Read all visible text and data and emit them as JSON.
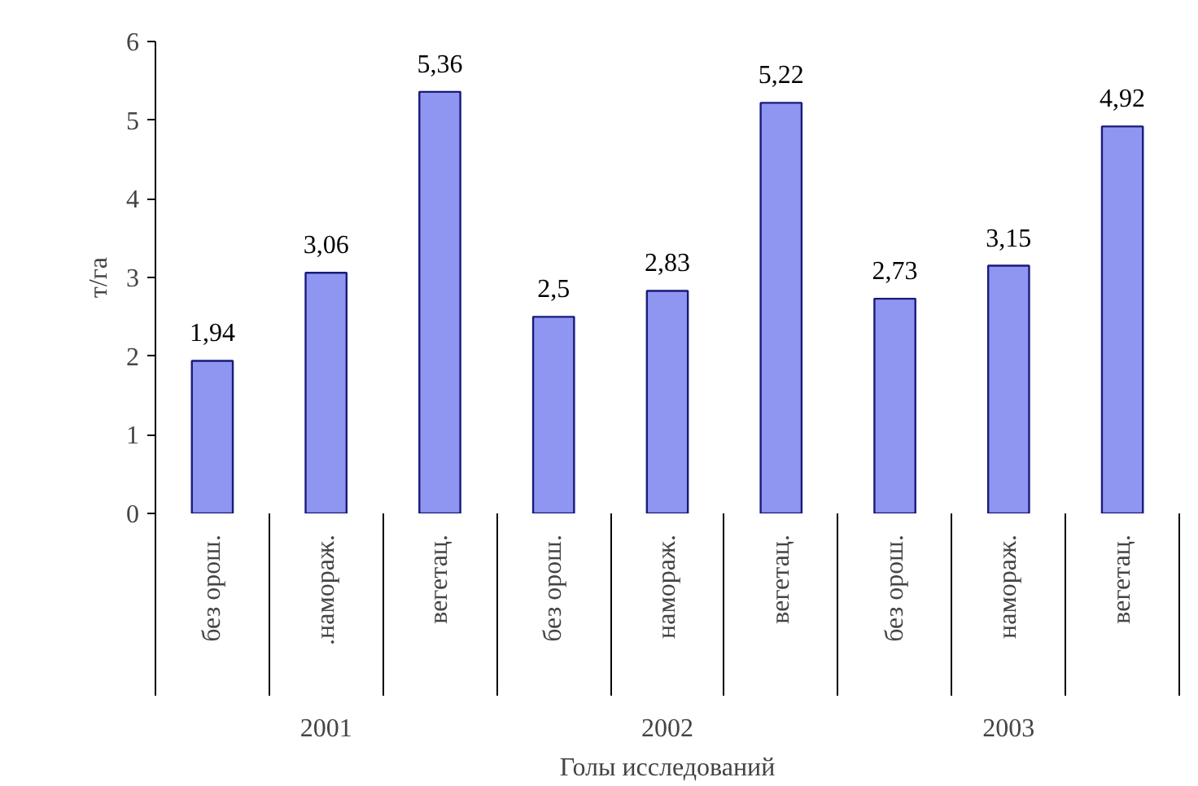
{
  "chart_data": {
    "type": "bar",
    "xlabel": "Голы исследований",
    "ylabel": "т/га",
    "categories": [
      "без орош.",
      ".намораж.",
      "вегетац.",
      "без орош.",
      "намораж.",
      "вегетац.",
      "без орош.",
      "намораж.",
      "вегетац."
    ],
    "values": [
      1.94,
      3.06,
      5.36,
      2.5,
      2.83,
      5.22,
      2.73,
      3.15,
      4.92
    ],
    "value_labels": [
      "1,94",
      "3,06",
      "5,36",
      "2,5",
      "2,83",
      "5,22",
      "2,73",
      "3,15",
      "4,92"
    ],
    "color": "#8f96f2",
    "annotations": [
      "2001",
      "2002",
      "2003"
    ],
    "ylim": [
      0,
      6
    ],
    "yticks": [
      0,
      1,
      2,
      3,
      4,
      5,
      6
    ],
    "grid": false
  }
}
